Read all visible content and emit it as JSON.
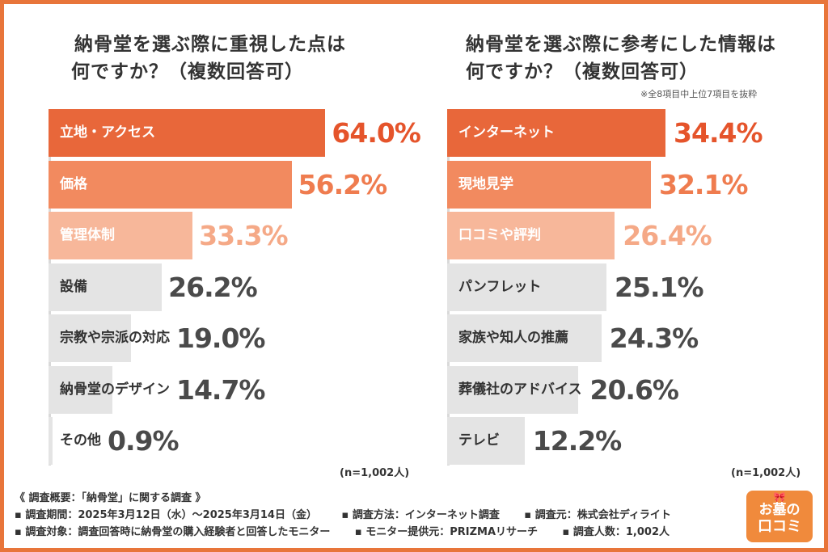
{
  "footer": {
    "heading": "《 調査概要：「納骨堂」に関する調査 》",
    "row1": [
      "▪ 調査期間：2025年3月12日（水）～2025年3月14日（金）",
      "▪ 調査方法：インターネット調査",
      "▪ 調査元：株式会社ディライト"
    ],
    "row2": [
      "▪ 調査対象：調査回答時に納骨堂の購入経験者と回答したモニター",
      "▪ モニター提供元：PRIZMAリサーチ",
      "▪ 調査人数：1,002人"
    ]
  },
  "logo": {
    "line1": "お墓の",
    "line2": "口コミ",
    "bow_icon": "ribbon-icon"
  },
  "colors": {
    "frame": "#e8753a",
    "rank1": "#e8673a",
    "rank2": "#f28a5f",
    "rank3": "#f7b79a",
    "other": "#e4e4e4",
    "val1": "#e5542b",
    "val2": "#ef7c4f",
    "val3": "#f5a987",
    "valOther": "#4a4a4a"
  },
  "chart_data": [
    {
      "type": "bar",
      "title_line1": "納骨堂を選ぶ際に重視した点は",
      "title_line2": "何ですか？（複数回答可）",
      "note": "",
      "sample": "(n=1,002人)",
      "categories": [
        "立地・アクセス",
        "価格",
        "管理体制",
        "設備",
        "宗教や宗派の対応",
        "納骨堂のデザイン",
        "その他"
      ],
      "values": [
        64.0,
        56.2,
        33.3,
        26.2,
        19.0,
        14.7,
        0.9
      ],
      "value_labels": [
        "64.0%",
        "56.2%",
        "33.3%",
        "26.2%",
        "19.0%",
        "14.7%",
        "0.9%"
      ],
      "unit": "%"
    },
    {
      "type": "bar",
      "title_line1": "納骨堂を選ぶ際に参考にした情報は",
      "title_line2": "何ですか？（複数回答可）",
      "note": "※全8項目中上位7項目を抜粋",
      "sample": "(n=1,002人)",
      "categories": [
        "インターネット",
        "現地見学",
        "口コミや評判",
        "パンフレット",
        "家族や知人の推薦",
        "葬儀社のアドバイス",
        "テレビ"
      ],
      "values": [
        34.4,
        32.1,
        26.4,
        25.1,
        24.3,
        20.6,
        12.2
      ],
      "value_labels": [
        "34.4%",
        "32.1%",
        "26.4%",
        "25.1%",
        "24.3%",
        "20.6%",
        "12.2%"
      ],
      "unit": "%"
    }
  ]
}
